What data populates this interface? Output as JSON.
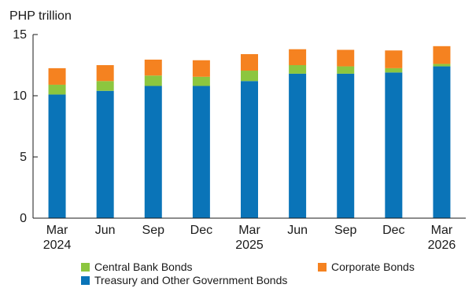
{
  "chart_data": {
    "type": "bar",
    "stacked": true,
    "unit_label": "PHP trillion",
    "categories": [
      {
        "month": "Mar",
        "year": "2024"
      },
      {
        "month": "Jun",
        "year": ""
      },
      {
        "month": "Sep",
        "year": ""
      },
      {
        "month": "Dec",
        "year": ""
      },
      {
        "month": "Mar",
        "year": "2025"
      },
      {
        "month": "Jun",
        "year": ""
      },
      {
        "month": "Sep",
        "year": ""
      },
      {
        "month": "Dec",
        "year": ""
      },
      {
        "month": "Mar",
        "year": "2026"
      }
    ],
    "series": [
      {
        "name": "Treasury and Other Government Bonds",
        "color": "#0a74b8",
        "values": [
          10.1,
          10.4,
          10.8,
          10.8,
          11.2,
          11.8,
          11.8,
          11.9,
          12.4
        ]
      },
      {
        "name": "Central Bank Bonds",
        "color": "#8cc63f",
        "values": [
          0.8,
          0.8,
          0.85,
          0.75,
          0.85,
          0.7,
          0.6,
          0.35,
          0.2
        ]
      },
      {
        "name": "Corporate Bonds",
        "color": "#f58220",
        "values": [
          1.35,
          1.3,
          1.3,
          1.35,
          1.35,
          1.3,
          1.35,
          1.45,
          1.45
        ]
      }
    ],
    "ylim": [
      0,
      15
    ],
    "yticks": [
      0,
      5,
      10,
      15
    ],
    "ytick_labels": [
      "0",
      "5",
      "10",
      "15"
    ],
    "grid": false,
    "legend_position": "bottom"
  },
  "legend": {
    "central_bank": "Central Bank Bonds",
    "corporate": "Corporate Bonds",
    "treasury": "Treasury and Other Government Bonds"
  }
}
